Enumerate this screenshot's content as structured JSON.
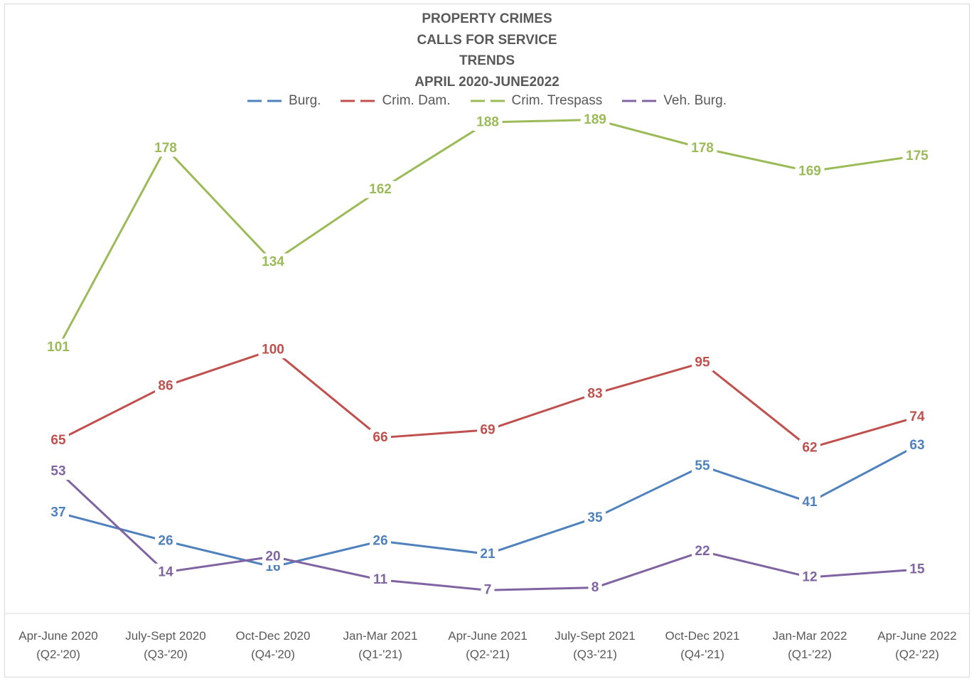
{
  "chart_data": {
    "type": "line",
    "title_lines": [
      "PROPERTY CRIMES",
      "CALLS FOR SERVICE",
      "TRENDS",
      "APRIL 2020-JUNE2022"
    ],
    "categories": [
      [
        "Apr-June 2020",
        "(Q2-'20)"
      ],
      [
        "July-Sept 2020",
        "(Q3-'20)"
      ],
      [
        "Oct-Dec 2020",
        "(Q4-'20)"
      ],
      [
        "Jan-Mar 2021",
        "(Q1-'21)"
      ],
      [
        "Apr-June 2021",
        "(Q2-'21)"
      ],
      [
        "July-Sept 2021",
        "(Q3-'21)"
      ],
      [
        "Oct-Dec 2021",
        "(Q4-'21)"
      ],
      [
        "Jan-Mar 2022",
        "(Q1-'22)"
      ],
      [
        "Apr-June 2022",
        "(Q2-'22)"
      ]
    ],
    "series": [
      {
        "name": "Burg.",
        "color": "#4f81bd",
        "values": [
          37,
          26,
          16,
          26,
          21,
          35,
          55,
          41,
          63
        ]
      },
      {
        "name": "Crim. Dam.",
        "color": "#c0504d",
        "values": [
          65,
          86,
          100,
          66,
          69,
          83,
          95,
          62,
          74
        ]
      },
      {
        "name": "Crim. Trespass",
        "color": "#9bbb59",
        "values": [
          101,
          178,
          134,
          162,
          188,
          189,
          178,
          169,
          175
        ]
      },
      {
        "name": "Veh. Burg.",
        "color": "#8064a2",
        "values": [
          53,
          14,
          20,
          11,
          7,
          8,
          22,
          12,
          15
        ]
      }
    ],
    "legend_position": "top",
    "grid": false,
    "data_labels": true,
    "ylim": [
      0,
      190
    ]
  }
}
